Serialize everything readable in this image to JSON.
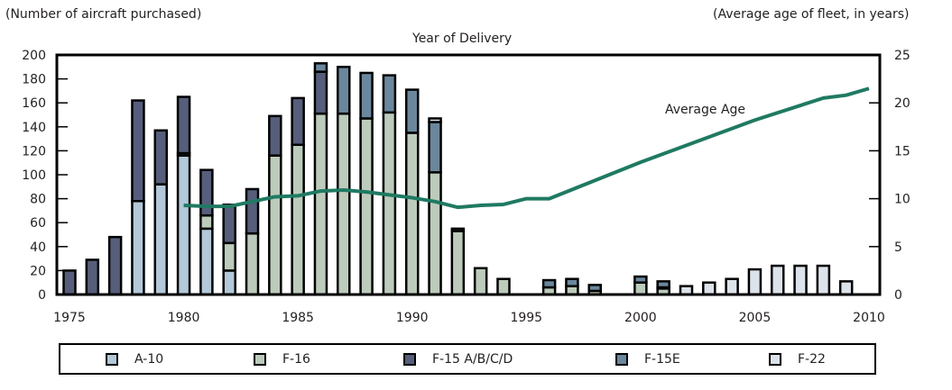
{
  "chart_data": {
    "type": "bar",
    "stacked": true,
    "title": "Year of Delivery",
    "ylabel": "(Number of aircraft purchased)",
    "y2label": "(Average age of fleet, in years)",
    "xlim": [
      1975,
      2010
    ],
    "ylim": [
      0,
      200
    ],
    "y2lim": [
      0,
      25
    ],
    "x_ticks": [
      1975,
      1980,
      1985,
      1990,
      1995,
      2000,
      2005,
      2010
    ],
    "y_ticks": [
      0,
      20,
      40,
      60,
      80,
      100,
      120,
      140,
      160,
      180,
      200
    ],
    "y2_ticks": [
      0,
      5,
      10,
      15,
      20,
      25
    ],
    "legend_position": "bottom",
    "series": [
      {
        "name": "A-10",
        "color": "#b3c8d8",
        "values": {
          "1978": 78,
          "1979": 92,
          "1980": 116,
          "1981": 55,
          "1982": 20
        }
      },
      {
        "name": "F-16",
        "color": "#bccbbb",
        "values": {
          "1980": 2,
          "1981": 11,
          "1982": 23,
          "1983": 51,
          "1984": 116,
          "1985": 125,
          "1986": 151,
          "1987": 151,
          "1988": 147,
          "1989": 152,
          "1990": 135,
          "1991": 102,
          "1992": 53,
          "1993": 22,
          "1994": 13,
          "1996": 6,
          "1997": 7,
          "1998": 3,
          "2000": 10,
          "2001": 5
        }
      },
      {
        "name": "F-15 A/B/C/D",
        "color": "#565e7b",
        "values": {
          "1975": 20,
          "1976": 29,
          "1977": 48,
          "1978": 84,
          "1979": 45,
          "1980": 47,
          "1981": 38,
          "1982": 32,
          "1983": 37,
          "1984": 33,
          "1985": 39,
          "1986": 35,
          "2001": 1
        }
      },
      {
        "name": "F-15E",
        "color": "#6a879d",
        "values": {
          "1986": 7,
          "1987": 39,
          "1988": 38,
          "1989": 31,
          "1990": 36,
          "1991": 42,
          "1992": 2,
          "1996": 6,
          "1997": 6,
          "1998": 5,
          "2000": 5,
          "2001": 5
        }
      },
      {
        "name": "F-22",
        "color": "#dde3ea",
        "values": {
          "1991": 3,
          "2002": 7,
          "2003": 10,
          "2004": 13,
          "2005": 21,
          "2006": 24,
          "2007": 24,
          "2008": 24,
          "2009": 11
        }
      }
    ],
    "line": {
      "name": "Average Age",
      "label": "Average Age",
      "axis": "right",
      "color": "#1f7a62",
      "points": [
        [
          1980,
          9.3
        ],
        [
          1981,
          9.2
        ],
        [
          1982,
          9.2
        ],
        [
          1983,
          9.7
        ],
        [
          1984,
          10.2
        ],
        [
          1985,
          10.3
        ],
        [
          1986,
          10.8
        ],
        [
          1987,
          10.9
        ],
        [
          1988,
          10.7
        ],
        [
          1989,
          10.4
        ],
        [
          1990,
          10.1
        ],
        [
          1991,
          9.7
        ],
        [
          1992,
          9.1
        ],
        [
          1993,
          9.3
        ],
        [
          1994,
          9.4
        ],
        [
          1995,
          10.0
        ],
        [
          1996,
          10.0
        ],
        [
          2000,
          13.8
        ],
        [
          2005,
          18.2
        ],
        [
          2008,
          20.5
        ],
        [
          2009,
          20.8
        ],
        [
          2010,
          21.5
        ]
      ]
    }
  },
  "legend": {
    "items": [
      {
        "label": "A-10",
        "color": "#b3c8d8"
      },
      {
        "label": "F-16",
        "color": "#bccbbb"
      },
      {
        "label": "F-15 A/B/C/D",
        "color": "#565e7b"
      },
      {
        "label": "F-15E",
        "color": "#6a879d"
      },
      {
        "label": "F-22",
        "color": "#dde3ea"
      }
    ]
  }
}
